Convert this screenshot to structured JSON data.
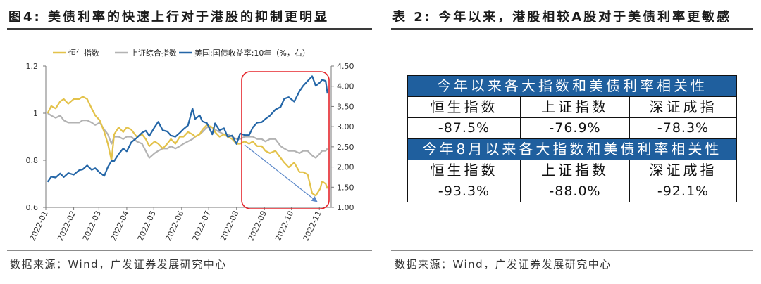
{
  "chart_data": {
    "type": "line",
    "title": "图4: 美债利率的快速上行对于港股的抑制更明显",
    "xlabel": "",
    "ylabel": "",
    "legend": "top",
    "grid": false,
    "xlim": [
      "2022-01-01",
      "2022-11-11"
    ],
    "xticklabels": [
      "2022-01",
      "2022-02",
      "2022-03",
      "2022-04",
      "2022-05",
      "2022-06",
      "2022-07",
      "2022-08",
      "2022-09",
      "2022-10",
      "2022-11"
    ],
    "ylim_left": [
      0.6,
      1.2
    ],
    "yticklabels_left": [
      "1.2",
      "1",
      "0.8",
      "0.6"
    ],
    "ylim_right": [
      1.0,
      4.5
    ],
    "yticklabels_right": [
      "4.50",
      "4.00",
      "3.50",
      "3.00",
      "2.50",
      "2.00",
      "1.50",
      "1.00"
    ],
    "x": [
      "2022-01-03",
      "2022-01-07",
      "2022-01-12",
      "2022-01-17",
      "2022-01-21",
      "2022-01-26",
      "2022-02-01",
      "2022-02-07",
      "2022-02-11",
      "2022-02-16",
      "2022-02-21",
      "2022-02-25",
      "2022-03-02",
      "2022-03-07",
      "2022-03-11",
      "2022-03-15",
      "2022-03-18",
      "2022-03-23",
      "2022-03-28",
      "2022-04-01",
      "2022-04-06",
      "2022-04-12",
      "2022-04-18",
      "2022-04-22",
      "2022-04-26",
      "2022-05-02",
      "2022-05-06",
      "2022-05-11",
      "2022-05-16",
      "2022-05-20",
      "2022-05-25",
      "2022-05-30",
      "2022-06-03",
      "2022-06-08",
      "2022-06-13",
      "2022-06-16",
      "2022-06-21",
      "2022-06-24",
      "2022-06-29",
      "2022-07-05",
      "2022-07-08",
      "2022-07-13",
      "2022-07-18",
      "2022-07-22",
      "2022-07-27",
      "2022-08-01",
      "2022-08-05",
      "2022-08-10",
      "2022-08-15",
      "2022-08-19",
      "2022-08-24",
      "2022-08-29",
      "2022-09-02",
      "2022-09-07",
      "2022-09-13",
      "2022-09-19",
      "2022-09-23",
      "2022-09-28",
      "2022-10-04",
      "2022-10-10",
      "2022-10-14",
      "2022-10-19",
      "2022-10-24",
      "2022-10-28",
      "2022-11-02",
      "2022-11-04",
      "2022-11-08",
      "2022-11-10"
    ],
    "series": [
      {
        "name": "恒生指数",
        "axis": "left",
        "color": "#E3C24A",
        "values": [
          1.0,
          1.03,
          1.02,
          1.05,
          1.06,
          1.04,
          1.06,
          1.06,
          1.07,
          1.06,
          1.02,
          0.99,
          0.97,
          0.92,
          0.87,
          0.8,
          0.91,
          0.94,
          0.92,
          0.94,
          0.93,
          0.9,
          0.91,
          0.89,
          0.86,
          0.88,
          0.87,
          0.85,
          0.87,
          0.89,
          0.87,
          0.9,
          0.9,
          0.92,
          0.91,
          0.9,
          0.91,
          0.93,
          0.95,
          0.94,
          0.92,
          0.9,
          0.91,
          0.9,
          0.89,
          0.87,
          0.87,
          0.88,
          0.87,
          0.88,
          0.86,
          0.86,
          0.84,
          0.83,
          0.84,
          0.81,
          0.79,
          0.77,
          0.79,
          0.75,
          0.75,
          0.74,
          0.66,
          0.65,
          0.68,
          0.71,
          0.7,
          0.68
        ]
      },
      {
        "name": "上证综合指数",
        "axis": "left",
        "color": "#B3B3B3",
        "values": [
          1.0,
          0.99,
          0.98,
          0.99,
          0.97,
          0.96,
          0.96,
          0.96,
          0.97,
          0.97,
          0.96,
          0.95,
          0.96,
          0.93,
          0.91,
          0.87,
          0.9,
          0.9,
          0.89,
          0.9,
          0.9,
          0.88,
          0.87,
          0.84,
          0.81,
          0.83,
          0.84,
          0.85,
          0.85,
          0.86,
          0.85,
          0.86,
          0.87,
          0.88,
          0.89,
          0.9,
          0.91,
          0.92,
          0.94,
          0.94,
          0.93,
          0.92,
          0.91,
          0.91,
          0.9,
          0.89,
          0.89,
          0.9,
          0.9,
          0.9,
          0.89,
          0.89,
          0.88,
          0.89,
          0.89,
          0.86,
          0.85,
          0.84,
          0.84,
          0.83,
          0.84,
          0.84,
          0.82,
          0.81,
          0.83,
          0.84,
          0.84,
          0.85
        ]
      },
      {
        "name": "美国:国债收益率:10年（%，右）",
        "axis": "right",
        "color": "#2466A7",
        "values": [
          1.63,
          1.76,
          1.74,
          1.84,
          1.75,
          1.85,
          1.81,
          1.92,
          1.94,
          2.04,
          1.93,
          1.97,
          1.86,
          1.78,
          2.0,
          2.15,
          2.15,
          2.32,
          2.46,
          2.39,
          2.61,
          2.72,
          2.85,
          2.9,
          2.77,
          2.99,
          3.12,
          2.91,
          2.88,
          2.78,
          2.75,
          2.85,
          2.94,
          3.03,
          3.45,
          3.19,
          3.28,
          3.13,
          3.09,
          2.81,
          3.08,
          2.91,
          2.96,
          2.75,
          2.78,
          2.57,
          2.83,
          2.79,
          2.79,
          2.98,
          3.1,
          3.11,
          3.19,
          3.27,
          3.42,
          3.49,
          3.69,
          3.73,
          3.62,
          3.88,
          4.01,
          4.13,
          4.25,
          4.01,
          4.1,
          4.16,
          4.13,
          3.82
        ]
      }
    ]
  },
  "left_panel": {
    "source": "数据来源：Wind，广发证券发展研究中心"
  },
  "right_panel": {
    "title": "表 2: 今年以来，港股相较A股对于美债利率更敏感",
    "source": "数据来源：Wind，广发证券发展研究中心",
    "table": {
      "sections": [
        {
          "title": "今年以来各大指数和美债利率相关性",
          "headers": [
            "恒生指数",
            "上证指数",
            "深证成指"
          ],
          "values": [
            "-87.5%",
            "-76.9%",
            "-78.3%"
          ]
        },
        {
          "title": "今年8月以来各大指数和美债利率相关性",
          "headers": [
            "恒生指数",
            "上证指数",
            "深证成指"
          ],
          "values": [
            "-93.3%",
            "-88.0%",
            "-92.1%"
          ]
        }
      ]
    }
  },
  "colors": {
    "highlight_box": "#E5252B",
    "trend_arrow": "#5B88C9",
    "table_band": "#1F5F9E",
    "table_band_text": "#FFFFFF",
    "title_rule": "#3A3A3A"
  }
}
